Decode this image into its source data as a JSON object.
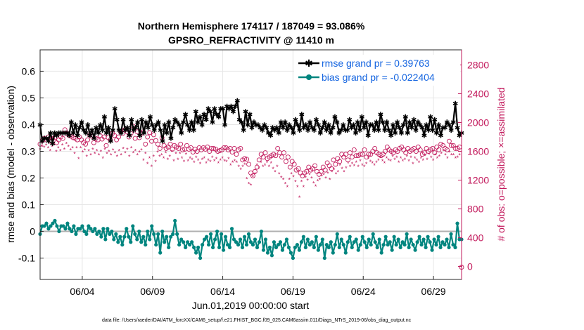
{
  "chart_data": {
    "type": "line",
    "title_line1": "Northern Hemisphere 174117 / 187049 = 93.086%",
    "title_line2": "GPSRO_REFRACTIVITY @ 11410 m",
    "xlabel": "Jun.01,2019 00:00:00 start",
    "ylabel_left": "rmse and bias (model - observation)",
    "ylabel_right": "# of obs: o=possible; ×=assimilated",
    "footnote": "data file: /Users/raeder/DAI/ATM_forcXX/CAM6_setup/f.e21.FHIST_BGC.f09_025.CAM6assim.011/Diags_NTrS_2019-06/obs_diag_output.nc",
    "x_range": [
      1.0,
      31.0
    ],
    "x_ticks": [
      {
        "day": 4.0,
        "label": "06/04"
      },
      {
        "day": 9.0,
        "label": "06/09"
      },
      {
        "day": 14.0,
        "label": "06/14"
      },
      {
        "day": 19.0,
        "label": "06/19"
      },
      {
        "day": 24.0,
        "label": "06/24"
      },
      {
        "day": 29.0,
        "label": "06/29"
      }
    ],
    "y_left_range": [
      -0.18,
      0.68
    ],
    "y_left_ticks": [
      "-0.1",
      "0",
      "0.1",
      "0.2",
      "0.3",
      "0.4",
      "0.5",
      "0.6"
    ],
    "y_right_range": [
      -180,
      3010
    ],
    "y_right_ticks": [
      "0",
      "400",
      "800",
      "1200",
      "1600",
      "2000",
      "2400",
      "2800"
    ],
    "grid": true,
    "legend_position": "top-right",
    "colors": {
      "rmse": "#000000",
      "bias": "#00857f",
      "obs": "#c2185b",
      "zero_line": "#b0b0b0",
      "legend_text": "#1565e0"
    },
    "series": [
      {
        "name": "rmse grand pr = 0.39763",
        "values": [
          0.4,
          0.34,
          0.35,
          0.35,
          0.34,
          0.37,
          0.33,
          0.37,
          0.36,
          0.37,
          0.37,
          0.37,
          0.37,
          0.37,
          0.36,
          0.41,
          0.37,
          0.4,
          0.36,
          0.39,
          0.41,
          0.38,
          0.37,
          0.4,
          0.36,
          0.38,
          0.35,
          0.39,
          0.37,
          0.4,
          0.38,
          0.43,
          0.37,
          0.39,
          0.34,
          0.38,
          0.46,
          0.42,
          0.38,
          0.37,
          0.42,
          0.38,
          0.39,
          0.36,
          0.42,
          0.38,
          0.39,
          0.41,
          0.36,
          0.42,
          0.37,
          0.41,
          0.39,
          0.43,
          0.4,
          0.38,
          0.4,
          0.41,
          0.38,
          0.34,
          0.4,
          0.37,
          0.41,
          0.35,
          0.39,
          0.42,
          0.41,
          0.4,
          0.37,
          0.41,
          0.44,
          0.4,
          0.38,
          0.41,
          0.38,
          0.45,
          0.41,
          0.43,
          0.4,
          0.44,
          0.42,
          0.46,
          0.45,
          0.41,
          0.46,
          0.44,
          0.43,
          0.46,
          0.46,
          0.4,
          0.47,
          0.46,
          0.47,
          0.45,
          0.47,
          0.49,
          0.42,
          0.41,
          0.38,
          0.45,
          0.4,
          0.44,
          0.39,
          0.41,
          0.4,
          0.4,
          0.39,
          0.38,
          0.4,
          0.39,
          0.37,
          0.36,
          0.39,
          0.38,
          0.39,
          0.37,
          0.41,
          0.39,
          0.41,
          0.38,
          0.4,
          0.39,
          0.37,
          0.42,
          0.4,
          0.38,
          0.44,
          0.39,
          0.4,
          0.38,
          0.41,
          0.39,
          0.38,
          0.42,
          0.4,
          0.37,
          0.39,
          0.41,
          0.38,
          0.4,
          0.37,
          0.39,
          0.43,
          0.41,
          0.37,
          0.38,
          0.4,
          0.38,
          0.38,
          0.42,
          0.39,
          0.4,
          0.37,
          0.41,
          0.38,
          0.43,
          0.39,
          0.41,
          0.36,
          0.4,
          0.4,
          0.38,
          0.41,
          0.38,
          0.44,
          0.41,
          0.38,
          0.41,
          0.38,
          0.36,
          0.4,
          0.37,
          0.41,
          0.39,
          0.37,
          0.4,
          0.43,
          0.37,
          0.41,
          0.39,
          0.42,
          0.38,
          0.41,
          0.4,
          0.39,
          0.36,
          0.4,
          0.38,
          0.43,
          0.38,
          0.42,
          0.37,
          0.4,
          0.36,
          0.39,
          0.39,
          0.41,
          0.4,
          0.38,
          0.41,
          0.48,
          0.39,
          0.36,
          0.37
        ]
      },
      {
        "name": "bias grand pr = -0.022404",
        "values": [
          -0.01,
          0.02,
          0.02,
          0.03,
          0.01,
          0.02,
          0.03,
          0.04,
          0.02,
          0.0,
          0.02,
          0.02,
          0.01,
          0.03,
          0.01,
          0.0,
          0.02,
          -0.01,
          0.01,
          0.01,
          0.02,
          0.0,
          -0.01,
          0.02,
          0.01,
          0.0,
          0.01,
          -0.01,
          0.0,
          -0.02,
          0.01,
          -0.03,
          0.01,
          -0.01,
          0.0,
          -0.03,
          -0.01,
          -0.04,
          -0.02,
          -0.05,
          -0.02,
          0.01,
          -0.02,
          -0.04,
          0.02,
          -0.01,
          -0.03,
          0.0,
          -0.04,
          -0.02,
          -0.05,
          0.0,
          -0.03,
          0.02,
          -0.01,
          -0.05,
          -0.01,
          -0.08,
          0.0,
          -0.04,
          -0.02,
          -0.06,
          -0.02,
          -0.01,
          0.04,
          -0.01,
          -0.05,
          -0.03,
          -0.04,
          -0.06,
          -0.04,
          -0.05,
          -0.04,
          -0.06,
          -0.08,
          -0.06,
          -0.1,
          -0.05,
          -0.03,
          -0.02,
          -0.05,
          -0.01,
          -0.06,
          -0.03,
          0.0,
          -0.06,
          -0.01,
          -0.07,
          -0.02,
          -0.05,
          -0.06,
          0.01,
          -0.03,
          -0.04,
          -0.05,
          -0.03,
          -0.06,
          -0.02,
          -0.05,
          -0.01,
          -0.04,
          -0.05,
          -0.03,
          -0.06,
          -0.04,
          0.0,
          -0.07,
          -0.03,
          -0.08,
          -0.06,
          -0.09,
          -0.04,
          -0.06,
          -0.05,
          -0.04,
          -0.07,
          -0.05,
          -0.03,
          -0.06,
          -0.08,
          -0.1,
          -0.06,
          -0.05,
          -0.07,
          -0.04,
          -0.02,
          -0.06,
          -0.03,
          -0.05,
          -0.04,
          -0.06,
          -0.02,
          -0.07,
          -0.05,
          -0.03,
          -0.1,
          -0.05,
          -0.06,
          -0.04,
          -0.08,
          -0.05,
          -0.01,
          -0.06,
          -0.03,
          -0.05,
          -0.08,
          -0.04,
          -0.02,
          -0.06,
          -0.04,
          -0.03,
          -0.07,
          -0.05,
          -0.02,
          -0.04,
          -0.06,
          -0.03,
          -0.05,
          -0.01,
          -0.04,
          -0.06,
          -0.03,
          -0.08,
          -0.05,
          -0.02,
          -0.05,
          -0.04,
          -0.07,
          -0.02,
          -0.05,
          -0.03,
          -0.06,
          -0.04,
          -0.05,
          -0.01,
          -0.06,
          -0.03,
          -0.05,
          -0.07,
          -0.04,
          -0.02,
          -0.05,
          -0.03,
          -0.06,
          -0.02,
          -0.04,
          -0.07,
          -0.03,
          -0.05,
          -0.02,
          -0.06,
          -0.04,
          -0.05,
          -0.03,
          -0.06,
          -0.01,
          -0.05,
          -0.06,
          0.03,
          -0.03,
          -0.03
        ]
      },
      {
        "name": "possible",
        "values": [
          1700,
          1750,
          1780,
          1760,
          1800,
          1740,
          1780,
          1790,
          1720,
          1760,
          1800,
          1780,
          1900,
          1850,
          1820,
          1810,
          1790,
          1780,
          1760,
          1800,
          1760,
          1720,
          1700,
          1760,
          1830,
          1810,
          1720,
          1780,
          1760,
          1820,
          1770,
          1800,
          1680,
          1790,
          1760,
          1850,
          1820,
          1760,
          1800,
          1870,
          1850,
          1900,
          1870,
          1800,
          1850,
          1950,
          1780,
          1870,
          1790,
          1850,
          1870,
          1700,
          1800,
          1860,
          1740,
          1830,
          1750,
          1700,
          1640,
          1790,
          1680,
          1640,
          1660,
          1700,
          1630,
          1680,
          1660,
          1640,
          1700,
          1620,
          1630,
          1680,
          1630,
          1650,
          1590,
          1630,
          1600,
          1650,
          1620,
          1650,
          1630,
          1660,
          1600,
          1640,
          1640,
          1630,
          1600,
          1610,
          1620,
          1650,
          1650,
          1620,
          1640,
          1590,
          1640,
          1560,
          1620,
          1640,
          1480,
          1500,
          1490,
          1420,
          1300,
          1260,
          1320,
          1380,
          1480,
          1560,
          1520,
          1580,
          1500,
          1520,
          1540,
          1560,
          1540,
          1640,
          1580,
          1520,
          1580,
          1460,
          1520,
          1380,
          1460,
          1420,
          1340,
          1360,
          1300,
          1260,
          1300,
          1320,
          1380,
          1340,
          1360,
          1400,
          1320,
          1280,
          1320,
          1380,
          1340,
          1440,
          1400,
          1360,
          1480,
          1420,
          1500,
          1460,
          1560,
          1520,
          1560,
          1480,
          1580,
          1520,
          1620,
          1540,
          1540,
          1560,
          1560,
          1620,
          1520,
          1560,
          1560,
          1600,
          1640,
          1580,
          1560,
          1540,
          1560,
          1600,
          1660,
          1620,
          1600,
          1580,
          1620,
          1600,
          1640,
          1660,
          1620,
          1580,
          1640,
          1600,
          1620,
          1640,
          1600,
          1660,
          1620,
          1560,
          1580,
          1640,
          1600,
          1620,
          1640,
          1580,
          1660,
          1620,
          1700,
          1680,
          1640,
          1620,
          1740,
          1680,
          1680,
          1640,
          1640,
          1660,
          -10
        ]
      },
      {
        "name": "assimilated",
        "values": [
          1620,
          1660,
          1650,
          1680,
          1640,
          1600,
          1660,
          1700,
          1590,
          1640,
          1600,
          1680,
          1620,
          1700,
          1660,
          1610,
          1640,
          1560,
          1640,
          1490,
          1640,
          1580,
          1610,
          1520,
          1600,
          1540,
          1620,
          1560,
          1600,
          1540,
          1590,
          1500,
          1620,
          1560,
          1590,
          1540,
          1610,
          1570,
          1520,
          1600,
          1540,
          1630,
          1570,
          1620,
          1520,
          1640,
          1570,
          1600,
          1540,
          1580,
          1610,
          1470,
          1560,
          1420,
          1500,
          1380,
          1520,
          1450,
          1580,
          1520,
          1540,
          1500,
          1570,
          1480,
          1520,
          1590,
          1460,
          1560,
          1480,
          1560,
          1500,
          1450,
          1550,
          1460,
          1500,
          1480,
          1440,
          1510,
          1470,
          1420,
          1480,
          1500,
          1430,
          1470,
          1450,
          1510,
          1460,
          1490,
          1430,
          1470,
          1500,
          1460,
          1450,
          1490,
          1400,
          1440,
          1460,
          1440,
          1380,
          1340,
          1380,
          1410,
          1210,
          1140,
          1120,
          1240,
          1280,
          1400,
          1360,
          1440,
          1380,
          1400,
          1440,
          1380,
          1430,
          1350,
          1310,
          1380,
          1280,
          1230,
          1200,
          1140,
          1100,
          1200,
          1280,
          1240,
          1170,
          1100,
          950,
          1170,
          1100,
          1230,
          1190,
          1270,
          1220,
          1150,
          1110,
          1180,
          1200,
          1250,
          1270,
          1220,
          1290,
          1200,
          1310,
          1340,
          1280,
          1310,
          1400,
          1350,
          1310,
          1360,
          1430,
          1380,
          1420,
          1390,
          1440,
          1380,
          1460,
          1400,
          1380,
          1420,
          1490,
          1450,
          1430,
          1400,
          1440,
          1470,
          1510,
          1460,
          1430,
          1500,
          1470,
          1460,
          1520,
          1480,
          1510,
          1440,
          1500,
          1460,
          1480,
          1520,
          1460,
          1510,
          1420,
          1500,
          1470,
          1440,
          1500,
          1470,
          1530,
          1480,
          1550,
          1510,
          1470,
          1540,
          1500,
          1520,
          1560,
          1600,
          1540,
          1500,
          1580,
          1540,
          1540,
          1500,
          1510,
          1540,
          -10
        ]
      }
    ]
  }
}
